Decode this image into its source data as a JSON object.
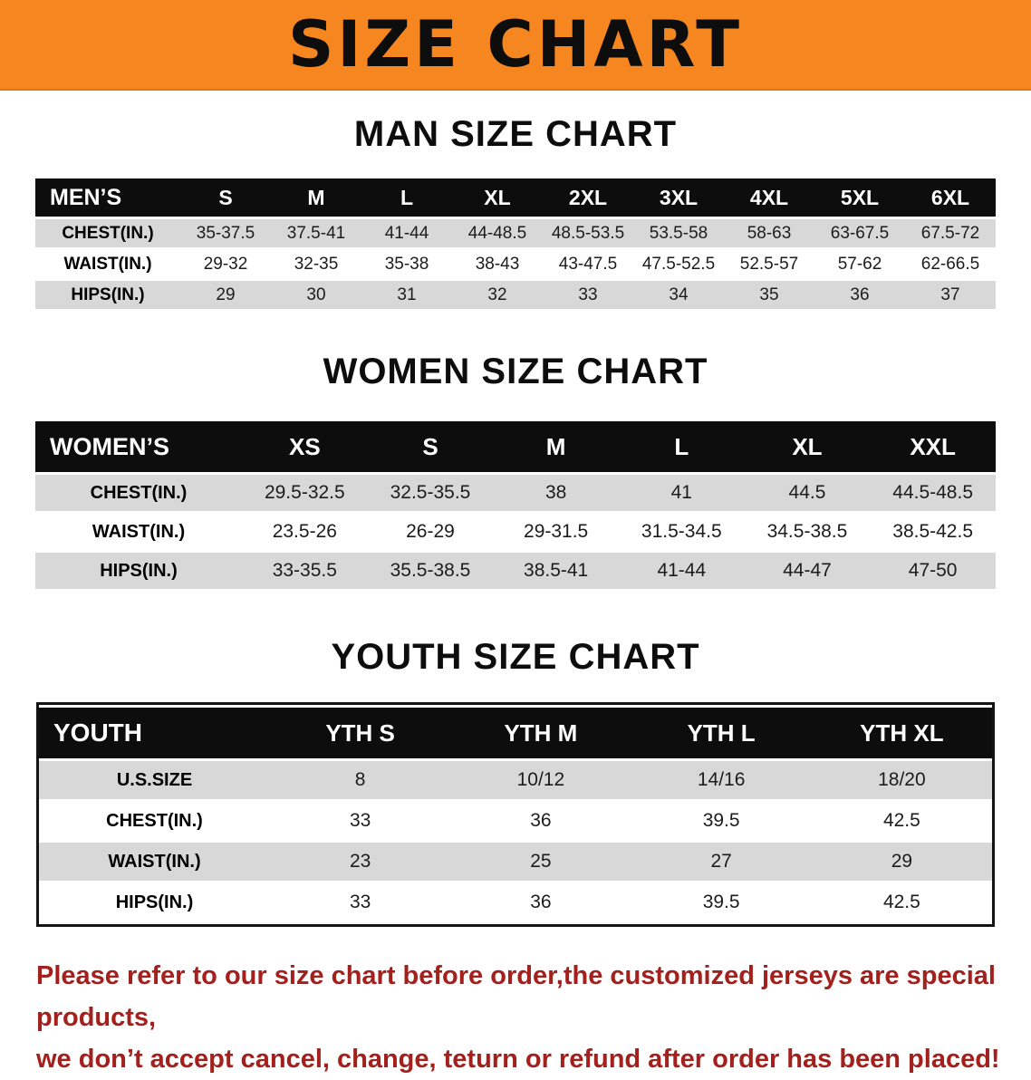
{
  "banner": {
    "title": "SIZE CHART",
    "bg_color": "#f6861f"
  },
  "sections": {
    "men": {
      "heading": "MAN SIZE CHART",
      "header": [
        "MEN’S",
        "S",
        "M",
        "L",
        "XL",
        "2XL",
        "3XL",
        "4XL",
        "5XL",
        "6XL"
      ],
      "rows": [
        {
          "label": "CHEST(IN.)",
          "values": [
            "35-37.5",
            "37.5-41",
            "41-44",
            "44-48.5",
            "48.5-53.5",
            "53.5-58",
            "58-63",
            "63-67.5",
            "67.5-72"
          ]
        },
        {
          "label": "WAIST(IN.)",
          "values": [
            "29-32",
            "32-35",
            "35-38",
            "38-43",
            "43-47.5",
            "47.5-52.5",
            "52.5-57",
            "57-62",
            "62-66.5"
          ]
        },
        {
          "label": "HIPS(IN.)",
          "values": [
            "29",
            "30",
            "31",
            "32",
            "33",
            "34",
            "35",
            "36",
            "37"
          ]
        }
      ]
    },
    "women": {
      "heading": "WOMEN SIZE CHART",
      "header": [
        "WOMEN’S",
        "XS",
        "S",
        "M",
        "L",
        "XL",
        "XXL"
      ],
      "rows": [
        {
          "label": "CHEST(IN.)",
          "values": [
            "29.5-32.5",
            "32.5-35.5",
            "38",
            "41",
            "44.5",
            "44.5-48.5"
          ]
        },
        {
          "label": "WAIST(IN.)",
          "values": [
            "23.5-26",
            "26-29",
            "29-31.5",
            "31.5-34.5",
            "34.5-38.5",
            "38.5-42.5"
          ]
        },
        {
          "label": "HIPS(IN.)",
          "values": [
            "33-35.5",
            "35.5-38.5",
            "38.5-41",
            "41-44",
            "44-47",
            "47-50"
          ]
        }
      ]
    },
    "youth": {
      "heading": "YOUTH SIZE CHART",
      "header": [
        "YOUTH",
        "YTH S",
        "YTH M",
        "YTH L",
        "YTH XL"
      ],
      "rows": [
        {
          "label": "U.S.SIZE",
          "values": [
            "8",
            "10/12",
            "14/16",
            "18/20"
          ]
        },
        {
          "label": "CHEST(IN.)",
          "values": [
            "33",
            "36",
            "39.5",
            "42.5"
          ]
        },
        {
          "label": "WAIST(IN.)",
          "values": [
            "23",
            "25",
            "27",
            "29"
          ]
        },
        {
          "label": "HIPS(IN.)",
          "values": [
            "33",
            "36",
            "39.5",
            "42.5"
          ]
        }
      ]
    }
  },
  "notice": {
    "line1": "Please refer to our size chart before order,the customized jerseys are special products,",
    "line2": "we don’t accept cancel, change, teturn or refund after order has been placed!",
    "color": "#a3201c"
  }
}
